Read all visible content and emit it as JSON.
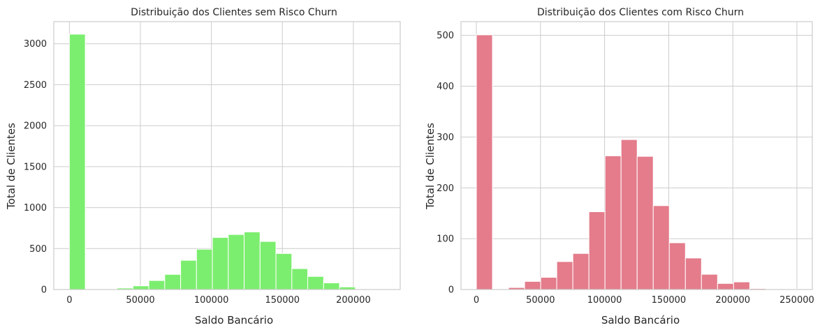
{
  "chart_data": [
    {
      "type": "bar",
      "subtype": "histogram",
      "title": "Distribuição dos Clientes sem Risco Churn",
      "xlabel": "Saldo Bancário",
      "ylabel": "Total de Clientes",
      "color": "#7cee6f",
      "xlim": [
        -11000,
        233000
      ],
      "ylim": [
        0,
        3270
      ],
      "xticks": [
        0,
        50000,
        100000,
        150000,
        200000
      ],
      "yticks": [
        0,
        500,
        1000,
        1500,
        2000,
        2500,
        3000
      ],
      "grid": true,
      "bin_width": 11190,
      "bins": [
        {
          "x0": 0,
          "count": 3117
        },
        {
          "x0": 11190,
          "count": 3
        },
        {
          "x0": 22380,
          "count": 5
        },
        {
          "x0": 33570,
          "count": 18
        },
        {
          "x0": 44760,
          "count": 45
        },
        {
          "x0": 55950,
          "count": 110
        },
        {
          "x0": 67140,
          "count": 185
        },
        {
          "x0": 78330,
          "count": 357
        },
        {
          "x0": 89520,
          "count": 492
        },
        {
          "x0": 100710,
          "count": 636
        },
        {
          "x0": 111900,
          "count": 672
        },
        {
          "x0": 123090,
          "count": 703
        },
        {
          "x0": 134280,
          "count": 587
        },
        {
          "x0": 145470,
          "count": 440
        },
        {
          "x0": 156660,
          "count": 255
        },
        {
          "x0": 167850,
          "count": 160
        },
        {
          "x0": 179040,
          "count": 82
        },
        {
          "x0": 190230,
          "count": 32
        },
        {
          "x0": 201420,
          "count": 7
        },
        {
          "x0": 212610,
          "count": 2
        }
      ]
    },
    {
      "type": "bar",
      "subtype": "histogram",
      "title": "Distribuição dos Clientes com Risco Churn",
      "xlabel": "Saldo Bancário",
      "ylabel": "Total de Clientes",
      "color": "#e47c8b",
      "xlim": [
        -12000,
        262000
      ],
      "ylim": [
        0,
        527
      ],
      "xticks": [
        0,
        50000,
        100000,
        150000,
        200000,
        250000
      ],
      "yticks": [
        0,
        100,
        200,
        300,
        400,
        500
      ],
      "grid": true,
      "bin_width": 12540,
      "bins": [
        {
          "x0": 0,
          "count": 501
        },
        {
          "x0": 12540,
          "count": 0
        },
        {
          "x0": 25080,
          "count": 4
        },
        {
          "x0": 37620,
          "count": 16
        },
        {
          "x0": 50160,
          "count": 24
        },
        {
          "x0": 62700,
          "count": 55
        },
        {
          "x0": 75240,
          "count": 71
        },
        {
          "x0": 87780,
          "count": 153
        },
        {
          "x0": 100320,
          "count": 263
        },
        {
          "x0": 112860,
          "count": 295
        },
        {
          "x0": 125400,
          "count": 262
        },
        {
          "x0": 137940,
          "count": 165
        },
        {
          "x0": 150480,
          "count": 92
        },
        {
          "x0": 163020,
          "count": 62
        },
        {
          "x0": 175560,
          "count": 30
        },
        {
          "x0": 188100,
          "count": 12
        },
        {
          "x0": 200640,
          "count": 15
        },
        {
          "x0": 213180,
          "count": 2
        },
        {
          "x0": 225720,
          "count": 1
        },
        {
          "x0": 238260,
          "count": 1
        }
      ]
    }
  ]
}
